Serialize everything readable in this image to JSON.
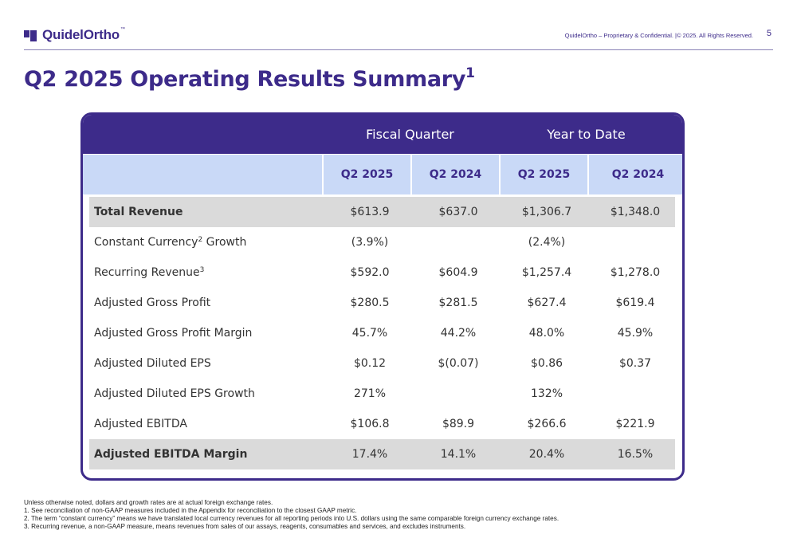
{
  "header": {
    "logo_text": "QuidelOrtho",
    "logo_tm": "™",
    "confidential": "QuidelOrtho – Proprietary & Confidential.   |© 2025. All Rights Reserved.",
    "page_number": "5"
  },
  "title": {
    "text": "Q2 2025 Operating Results Summary",
    "sup": "1"
  },
  "table": {
    "group_headers": {
      "fiscal_quarter": "Fiscal Quarter",
      "year_to_date": "Year to Date"
    },
    "columns": [
      "Q2 2025",
      "Q2 2024",
      "Q2 2025",
      "Q2 2024"
    ],
    "rows": [
      {
        "label": "Total Revenue",
        "sup": "",
        "values": [
          "$613.9",
          "$637.0",
          "$1,306.7",
          "$1,348.0"
        ]
      },
      {
        "label": "Constant Currency",
        "sup": "2",
        "label_suffix": " Growth",
        "values": [
          "(3.9%)",
          "",
          "(2.4%)",
          ""
        ]
      },
      {
        "label": "Recurring Revenue",
        "sup": "3",
        "values": [
          "$592.0",
          "$604.9",
          "$1,257.4",
          "$1,278.0"
        ]
      },
      {
        "label": "Adjusted Gross Profit",
        "sup": "",
        "values": [
          "$280.5",
          "$281.5",
          "$627.4",
          "$619.4"
        ]
      },
      {
        "label": "Adjusted Gross Profit Margin",
        "sup": "",
        "values": [
          "45.7%",
          "44.2%",
          "48.0%",
          "45.9%"
        ]
      },
      {
        "label": "Adjusted Diluted EPS",
        "sup": "",
        "values": [
          "$0.12",
          "$(0.07)",
          "$0.86",
          "$0.37"
        ]
      },
      {
        "label": "Adjusted Diluted EPS Growth",
        "sup": "",
        "values": [
          "271%",
          "",
          "132%",
          ""
        ]
      },
      {
        "label": "Adjusted EBITDA",
        "sup": "",
        "values": [
          "$106.8",
          "$89.9",
          "$266.6",
          "$221.9"
        ]
      },
      {
        "label": "Adjusted EBITDA Margin",
        "sup": "",
        "values": [
          "17.4%",
          "14.1%",
          "20.4%",
          "16.5%"
        ]
      }
    ]
  },
  "footnotes": [
    "Unless otherwise noted, dollars and growth rates are at actual foreign exchange rates.",
    "1. See reconciliation of non-GAAP measures included in the Appendix for reconciliation to the closest GAAP metric.",
    "2. The term “constant currency” means we have translated local currency revenues for all reporting periods into U.S. dollars using the same comparable foreign currency exchange rates.",
    "3. Recurring revenue, a non-GAAP measure, means revenues from sales of our assays, reagents, consumables and services, and excludes instruments."
  ],
  "colors": {
    "brand": "#3d2b8a",
    "subheader": "#c9d9f7",
    "shade": "#dadada"
  }
}
